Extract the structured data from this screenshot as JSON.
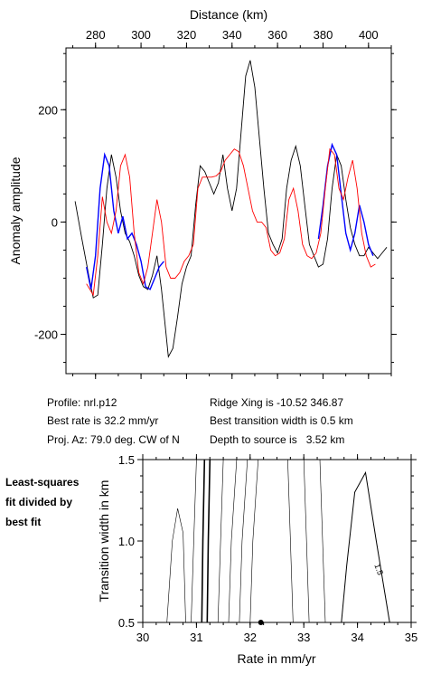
{
  "info": {
    "profile": "Profile: nrl.p12",
    "best_rate": "Best rate is 32.2 mm/yr",
    "proj_az": "Proj. Az: 79.0 deg. CW of N",
    "ridge_xing": "Ridge Xing is -10.52 346.87",
    "best_width": "Best transition width is 0.5 km",
    "depth": "Depth to source is   3.52 km"
  },
  "side_label": [
    "Least-squares",
    "fit divided by",
    "best fit"
  ],
  "chart_data": [
    {
      "type": "line",
      "xlabel": "Distance (km)",
      "ylabel": "Anomaly amplitude",
      "xlim": [
        267,
        410
      ],
      "ylim": [
        -270,
        310
      ],
      "x_ticks": [
        280,
        300,
        320,
        340,
        360,
        380,
        400
      ],
      "y_ticks": [
        200,
        0,
        -200
      ],
      "series": [
        {
          "color": "#000000",
          "x": [
            271,
            274,
            277,
            279,
            281,
            283,
            285,
            287,
            289,
            291,
            293,
            295,
            297,
            299,
            301,
            303,
            305,
            307,
            309,
            311,
            312,
            314,
            316,
            318,
            320,
            322,
            324,
            326,
            328,
            330,
            332,
            334,
            336,
            338,
            340,
            342,
            344,
            346,
            348,
            350,
            352,
            354,
            356,
            358,
            360,
            362,
            364,
            366,
            368,
            370,
            372,
            374,
            376,
            378,
            380,
            382,
            384,
            386,
            388,
            390,
            392,
            394,
            396,
            398,
            400,
            402,
            404,
            406,
            408
          ],
          "y": [
            37,
            -30,
            -95,
            -135,
            -130,
            -40,
            60,
            120,
            80,
            20,
            -20,
            -35,
            -60,
            -95,
            -115,
            -120,
            -95,
            -60,
            -120,
            -200,
            -240,
            -225,
            -170,
            -110,
            -80,
            -60,
            30,
            100,
            90,
            70,
            50,
            70,
            120,
            60,
            20,
            60,
            160,
            260,
            288,
            240,
            150,
            60,
            -20,
            -40,
            -55,
            -30,
            60,
            110,
            135,
            100,
            30,
            -40,
            -60,
            -80,
            -75,
            -30,
            60,
            120,
            100,
            40,
            -10,
            -40,
            -60,
            -60,
            -45,
            -55,
            -65,
            -55,
            -45
          ]
        },
        {
          "color": "#0000ff",
          "x": [
            276,
            278,
            280,
            282,
            284,
            286,
            288,
            290,
            292,
            294,
            296,
            298,
            300,
            302,
            304,
            306,
            308,
            310
          ],
          "y": [
            -80,
            -120,
            -60,
            60,
            120,
            100,
            20,
            -20,
            10,
            -30,
            -20,
            -40,
            -70,
            -115,
            -120,
            -100,
            -80,
            -70
          ]
        },
        {
          "color": "#0000ff",
          "x": [
            378,
            380,
            382,
            384,
            386,
            388,
            390,
            392,
            394,
            396,
            398,
            400,
            402
          ],
          "y": [
            -30,
            30,
            100,
            138,
            120,
            50,
            -20,
            -50,
            -20,
            30,
            0,
            -40,
            -60
          ]
        },
        {
          "color": "#ff0000",
          "x": [
            276,
            279,
            281,
            283,
            285,
            287,
            289,
            291,
            293,
            295,
            297,
            299,
            301,
            303,
            305,
            307,
            309,
            311,
            313,
            315,
            317,
            319,
            321,
            323,
            325,
            327,
            329,
            331,
            333,
            335,
            337,
            339,
            341,
            343,
            345,
            347,
            349,
            351,
            353,
            355,
            357,
            359,
            361,
            363,
            365,
            367,
            369,
            371,
            373,
            375,
            377,
            379,
            381,
            383,
            385,
            387,
            389,
            391,
            393,
            395,
            397,
            399,
            401,
            403
          ],
          "y": [
            -110,
            -130,
            -60,
            45,
            0,
            -20,
            20,
            100,
            120,
            80,
            -20,
            -90,
            -110,
            -80,
            -20,
            40,
            0,
            -80,
            -100,
            -100,
            -90,
            -70,
            -60,
            -40,
            60,
            80,
            80,
            80,
            82,
            90,
            110,
            120,
            130,
            125,
            100,
            60,
            20,
            0,
            0,
            -10,
            -50,
            -60,
            -55,
            -30,
            40,
            60,
            20,
            -40,
            -60,
            -65,
            -55,
            -20,
            60,
            130,
            120,
            60,
            40,
            80,
            110,
            60,
            -20,
            -60,
            -80,
            -75
          ]
        }
      ]
    },
    {
      "type": "contour",
      "xlabel": "Rate in mm/yr",
      "ylabel": "Transition width in km",
      "xlim": [
        30,
        35
      ],
      "ylim": [
        0.5,
        1.5
      ],
      "x_ticks": [
        30,
        31,
        32,
        33,
        34,
        35
      ],
      "y_ticks": [
        1.5,
        1.0,
        0.5
      ],
      "best_fit_point": [
        32.2,
        0.5
      ],
      "contour_label": "1.5",
      "contours": [
        [
          [
            30.45,
            0.5
          ],
          [
            30.55,
            1.0
          ],
          [
            30.65,
            1.2
          ],
          [
            30.75,
            1.05
          ],
          [
            30.8,
            0.5
          ]
        ],
        [
          [
            30.9,
            0.5
          ],
          [
            30.95,
            1.0
          ],
          [
            31.0,
            1.5
          ]
        ],
        [
          [
            31.1,
            0.5
          ],
          [
            31.12,
            1.0
          ],
          [
            31.15,
            1.5
          ]
        ],
        [
          [
            31.2,
            0.5
          ],
          [
            31.22,
            1.0
          ],
          [
            31.25,
            1.5
          ]
        ],
        [
          [
            31.4,
            0.5
          ],
          [
            31.45,
            1.0
          ],
          [
            31.5,
            1.5
          ]
        ],
        [
          [
            31.6,
            0.5
          ],
          [
            31.65,
            1.0
          ],
          [
            31.75,
            1.5
          ]
        ],
        [
          [
            31.8,
            0.5
          ],
          [
            31.85,
            1.0
          ],
          [
            31.95,
            1.5
          ]
        ],
        [
          [
            32.0,
            0.5
          ],
          [
            32.05,
            1.0
          ],
          [
            32.15,
            1.5
          ]
        ],
        [
          [
            32.8,
            0.5
          ],
          [
            32.75,
            1.0
          ],
          [
            32.7,
            1.5
          ]
        ],
        [
          [
            33.1,
            0.5
          ],
          [
            33.05,
            1.0
          ],
          [
            33.0,
            1.5
          ]
        ],
        [
          [
            33.4,
            0.5
          ],
          [
            33.35,
            1.0
          ],
          [
            33.3,
            1.5
          ]
        ],
        [
          [
            33.7,
            0.5
          ],
          [
            33.8,
            0.85
          ],
          [
            33.95,
            1.3
          ],
          [
            34.15,
            1.42
          ],
          [
            34.35,
            1.0
          ],
          [
            34.6,
            0.5
          ]
        ]
      ]
    }
  ]
}
